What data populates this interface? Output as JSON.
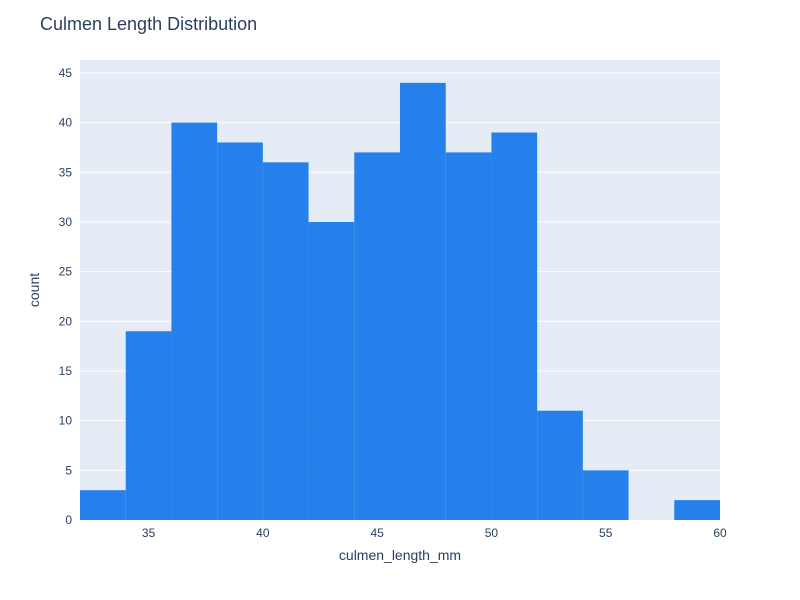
{
  "chart_data": {
    "type": "bar",
    "title": "Culmen Length Distribution",
    "xlabel": "culmen_length_mm",
    "ylabel": "count",
    "xlim": [
      32,
      60
    ],
    "ylim": [
      0,
      46.3
    ],
    "xticks": [
      35,
      40,
      45,
      50,
      55,
      60
    ],
    "yticks": [
      0,
      5,
      10,
      15,
      20,
      25,
      30,
      35,
      40,
      45
    ],
    "bin_width": 2,
    "bins": [
      {
        "x0": 32,
        "x1": 34,
        "count": 3
      },
      {
        "x0": 34,
        "x1": 36,
        "count": 19
      },
      {
        "x0": 36,
        "x1": 38,
        "count": 40
      },
      {
        "x0": 38,
        "x1": 40,
        "count": 38
      },
      {
        "x0": 40,
        "x1": 42,
        "count": 36
      },
      {
        "x0": 42,
        "x1": 44,
        "count": 30
      },
      {
        "x0": 44,
        "x1": 46,
        "count": 37
      },
      {
        "x0": 46,
        "x1": 48,
        "count": 44
      },
      {
        "x0": 48,
        "x1": 50,
        "count": 37
      },
      {
        "x0": 50,
        "x1": 52,
        "count": 39
      },
      {
        "x0": 52,
        "x1": 54,
        "count": 11
      },
      {
        "x0": 54,
        "x1": 56,
        "count": 5
      },
      {
        "x0": 56,
        "x1": 58,
        "count": 0
      },
      {
        "x0": 58,
        "x1": 60,
        "count": 2
      }
    ],
    "grid": true,
    "colors": {
      "bar": "#2680eb",
      "plot_bg": "#e5ecf6",
      "grid": "#ffffff",
      "text": "#2a3f5f"
    }
  }
}
